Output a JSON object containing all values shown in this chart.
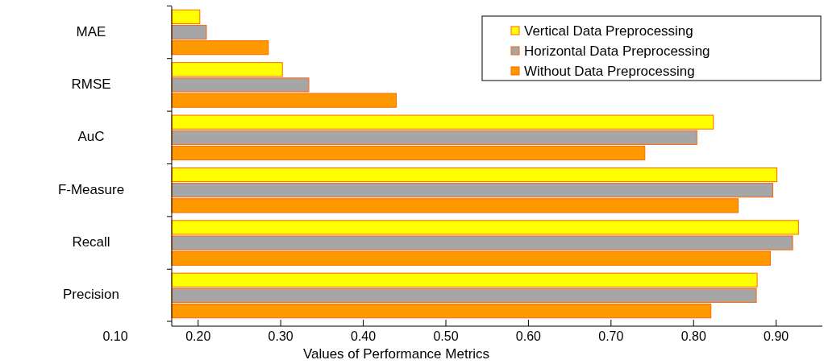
{
  "chart_data": {
    "type": "bar",
    "orientation": "horizontal",
    "xlabel": "Values of Performance Metrics",
    "categories": [
      "MAE",
      "RMSE",
      "AuC",
      "F-Measure",
      "Recall",
      "Precision"
    ],
    "series": [
      {
        "name": "Vertical Data Preprocessing",
        "color": "#ffff00",
        "values": [
          0.202,
          0.302,
          0.824,
          0.901,
          0.927,
          0.877
        ]
      },
      {
        "name": "Horizontal Data Preprocessing",
        "color": "#a6a6a6",
        "values": [
          0.21,
          0.334,
          0.804,
          0.896,
          0.92,
          0.876
        ]
      },
      {
        "name": "Without Data Preprocessing",
        "color": "#ff9900",
        "values": [
          0.285,
          0.44,
          0.741,
          0.854,
          0.893,
          0.821
        ]
      }
    ],
    "xlim": [
      0.168,
      0.956
    ],
    "xticks": [
      {
        "value": 0.2,
        "label": "0.20"
      },
      {
        "value": 0.3,
        "label": "0.30"
      },
      {
        "value": 0.4,
        "label": "0.40"
      },
      {
        "value": 0.5,
        "label": "0.50"
      },
      {
        "value": 0.6,
        "label": "0.60"
      },
      {
        "value": 0.7,
        "label": "0.70"
      },
      {
        "value": 0.8,
        "label": "0.80"
      },
      {
        "value": 0.9,
        "label": "0.90"
      }
    ],
    "annotations": [
      "0.10"
    ],
    "legend": "top right",
    "grid": false
  }
}
